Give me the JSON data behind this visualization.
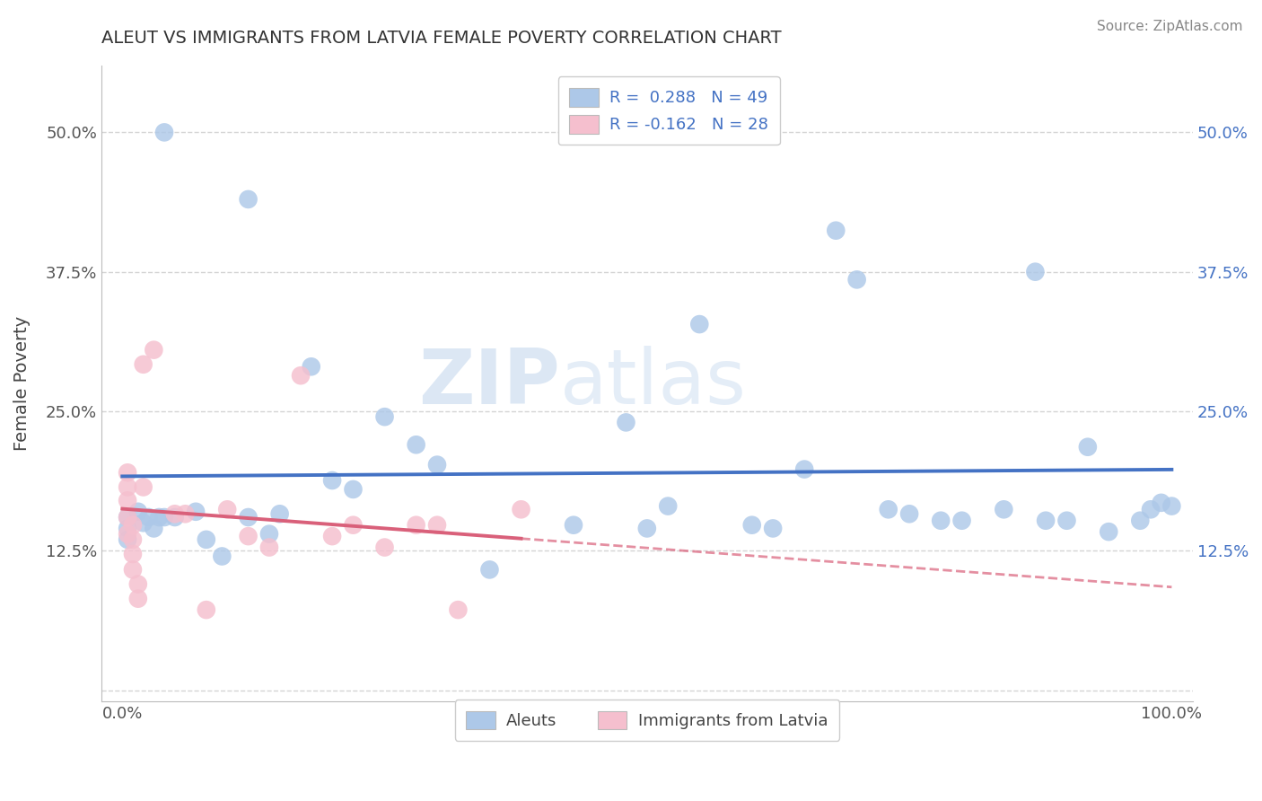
{
  "title": "ALEUT VS IMMIGRANTS FROM LATVIA FEMALE POVERTY CORRELATION CHART",
  "source_text": "Source: ZipAtlas.com",
  "ylabel": "Female Poverty",
  "xlim": [
    -0.02,
    1.02
  ],
  "ylim": [
    -0.01,
    0.56
  ],
  "yticks": [
    0.0,
    0.125,
    0.25,
    0.375,
    0.5
  ],
  "ytick_labels_left": [
    "",
    "12.5%",
    "25.0%",
    "37.5%",
    "50.0%"
  ],
  "ytick_labels_right": [
    "",
    "12.5%",
    "25.0%",
    "37.5%",
    "50.0%"
  ],
  "xticks": [
    0.0,
    1.0
  ],
  "xtick_labels": [
    "0.0%",
    "100.0%"
  ],
  "legend_top": [
    {
      "label": "R =  0.288   N = 49",
      "color": "#adc8e8"
    },
    {
      "label": "R = -0.162   N = 28",
      "color": "#f5bfce"
    }
  ],
  "legend_bottom": [
    {
      "label": "Aleuts",
      "color": "#adc8e8"
    },
    {
      "label": "Immigrants from Latvia",
      "color": "#f5bfce"
    }
  ],
  "aleuts_x": [
    0.04,
    0.12,
    0.005,
    0.005,
    0.005,
    0.015,
    0.02,
    0.025,
    0.03,
    0.035,
    0.04,
    0.05,
    0.07,
    0.08,
    0.095,
    0.12,
    0.14,
    0.18,
    0.22,
    0.25,
    0.28,
    0.35,
    0.43,
    0.48,
    0.5,
    0.52,
    0.6,
    0.62,
    0.65,
    0.68,
    0.7,
    0.73,
    0.75,
    0.8,
    0.84,
    0.87,
    0.88,
    0.9,
    0.92,
    0.94,
    0.97,
    0.98,
    0.99,
    1.0,
    0.2,
    0.3,
    0.55,
    0.78,
    0.15
  ],
  "aleuts_y": [
    0.5,
    0.44,
    0.155,
    0.145,
    0.135,
    0.16,
    0.15,
    0.155,
    0.145,
    0.155,
    0.155,
    0.155,
    0.16,
    0.135,
    0.12,
    0.155,
    0.14,
    0.29,
    0.18,
    0.245,
    0.22,
    0.108,
    0.148,
    0.24,
    0.145,
    0.165,
    0.148,
    0.145,
    0.198,
    0.412,
    0.368,
    0.162,
    0.158,
    0.152,
    0.162,
    0.375,
    0.152,
    0.152,
    0.218,
    0.142,
    0.152,
    0.162,
    0.168,
    0.165,
    0.188,
    0.202,
    0.328,
    0.152,
    0.158
  ],
  "latvia_x": [
    0.005,
    0.005,
    0.005,
    0.005,
    0.005,
    0.01,
    0.01,
    0.01,
    0.01,
    0.015,
    0.015,
    0.02,
    0.02,
    0.03,
    0.05,
    0.06,
    0.08,
    0.1,
    0.12,
    0.14,
    0.17,
    0.2,
    0.22,
    0.25,
    0.28,
    0.3,
    0.32,
    0.38
  ],
  "latvia_y": [
    0.195,
    0.182,
    0.17,
    0.155,
    0.14,
    0.148,
    0.135,
    0.122,
    0.108,
    0.095,
    0.082,
    0.182,
    0.292,
    0.305,
    0.158,
    0.158,
    0.072,
    0.162,
    0.138,
    0.128,
    0.282,
    0.138,
    0.148,
    0.128,
    0.148,
    0.148,
    0.072,
    0.162
  ],
  "aleut_line_color": "#4472c4",
  "latvia_line_color": "#d9607a",
  "aleut_dot_color": "#adc8e8",
  "latvia_dot_color": "#f5bfce",
  "watermark_zip": "ZIP",
  "watermark_atlas": "atlas",
  "background_color": "#ffffff",
  "grid_color": "#d0d0d0"
}
